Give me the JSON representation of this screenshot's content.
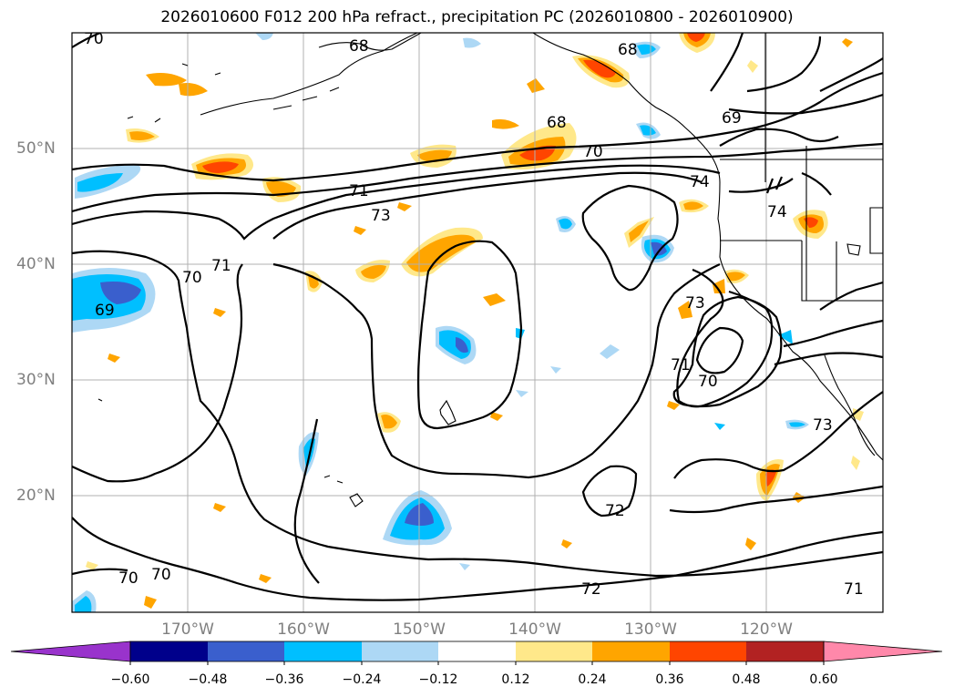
{
  "title": "2026010600 F012 200 hPa refract., precipitation PC (2026010800 - 2026010900)",
  "lat_labels": [
    "50°N",
    "40°N",
    "30°N",
    "20°N"
  ],
  "lon_labels": [
    "170°W",
    "160°W",
    "150°W",
    "140°W",
    "130°W",
    "120°W"
  ],
  "colorbar": {
    "tick_labels": [
      "−0.60",
      "−0.48",
      "−0.36",
      "−0.24",
      "−0.12",
      "0.12",
      "0.24",
      "0.36",
      "0.48",
      "0.60"
    ],
    "colors": [
      "#9933cc",
      "#00008b",
      "#3a5fcd",
      "#00bfff",
      "#add8f5",
      "#ffffff",
      "#ffe88a",
      "#ffa500",
      "#ff4500",
      "#b22222",
      "#ff88aa"
    ]
  },
  "contour_labels": [
    "70",
    "68",
    "68",
    "68",
    "69",
    "70",
    "71",
    "73",
    "74",
    "74",
    "71",
    "70",
    "69",
    "73",
    "71",
    "70",
    "73",
    "72",
    "70",
    "70",
    "72",
    "71"
  ],
  "colors": {
    "light_blue": "#add8f5",
    "sky_blue": "#00bfff",
    "mid_blue": "#3a5fcd",
    "yellow": "#ffe88a",
    "orange": "#ffa500",
    "red_orange": "#ff4500"
  }
}
